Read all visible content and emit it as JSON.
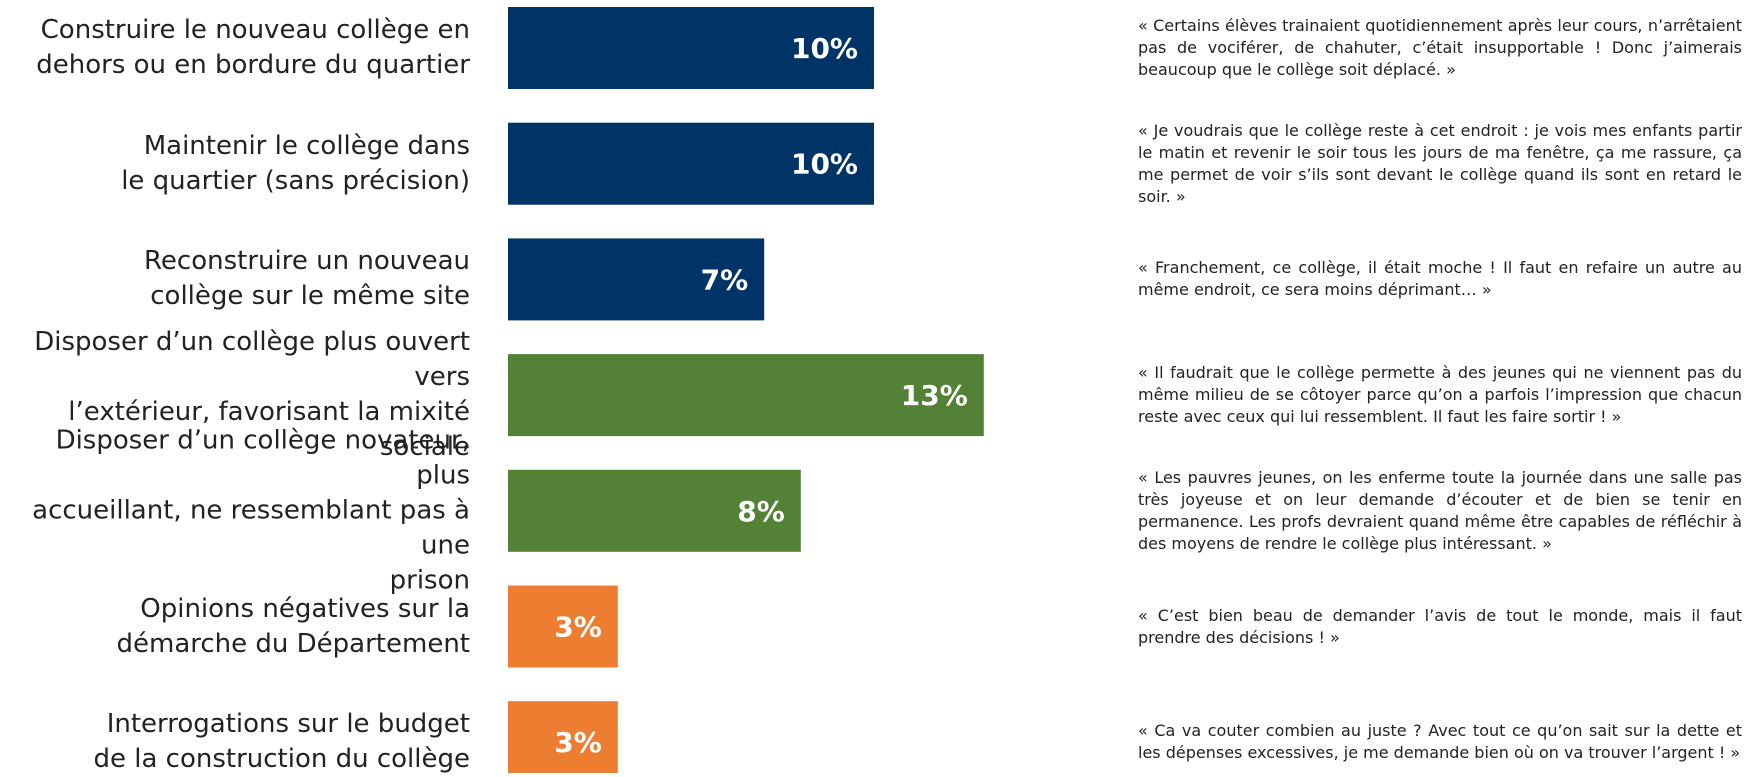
{
  "chart_data": {
    "type": "bar",
    "orientation": "horizontal",
    "categories": [
      "Construire le nouveau collège en\ndehors ou en bordure du quartier",
      "Maintenir le collège dans\nle quartier (sans précision)",
      "Reconstruire un nouveau\ncollège sur le même site",
      "Disposer d’un collège plus ouvert vers\nl’extérieur, favorisant la mixité sociale",
      "Disposer d’un collège novateur, plus\naccueillant, ne ressemblant pas à une\nprison",
      "Opinions négatives sur la\ndémarche du Département",
      "Interrogations sur le budget\nde la construction du collège"
    ],
    "values": [
      10,
      10,
      7,
      13,
      8,
      3,
      3
    ],
    "value_labels": [
      "10%",
      "10%",
      "7%",
      "13%",
      "8%",
      "3%",
      "3%"
    ],
    "colors": [
      "#003466",
      "#003466",
      "#003466",
      "#538135",
      "#538135",
      "#ed7d31",
      "#ed7d31"
    ],
    "quotes": [
      "« Certains élèves trainaient quotidiennement après leur cours, n’arrêtaient pas de vociférer, de chahuter, c’était insupportable ! Donc j’aimerais beaucoup que le collège soit déplacé. »",
      "« Je voudrais que le collège reste à cet endroit : je vois mes enfants partir le matin et revenir le soir tous les jours de ma fenêtre, ça me rassure, ça me permet de voir s’ils sont devant le collège quand ils sont en retard le soir. »",
      "« Franchement, ce collège, il était moche ! Il faut en refaire un autre au même endroit, ce sera moins déprimant… »",
      "« Il faudrait que le collège permette à des jeunes qui ne viennent pas du même milieu de se côtoyer parce qu’on a parfois l’impression que chacun reste avec ceux qui lui ressemblent. Il faut les faire sortir ! »",
      "« Les pauvres jeunes, on les enferme toute la journée dans une salle pas très joyeuse et on leur demande d’écouter et de bien se tenir en permanence. Les profs devraient quand même être capables de réfléchir à des moyens de rendre le collège plus intéressant. »",
      "« C’est bien beau de demander l’avis de tout le monde, mais il faut prendre des décisions ! »",
      "« Ca va couter combien au juste ? Avec tout ce qu’on sait sur la dette et les dépenses excessives, je me demande bien où on va trouver l’argent ! »"
    ]
  }
}
